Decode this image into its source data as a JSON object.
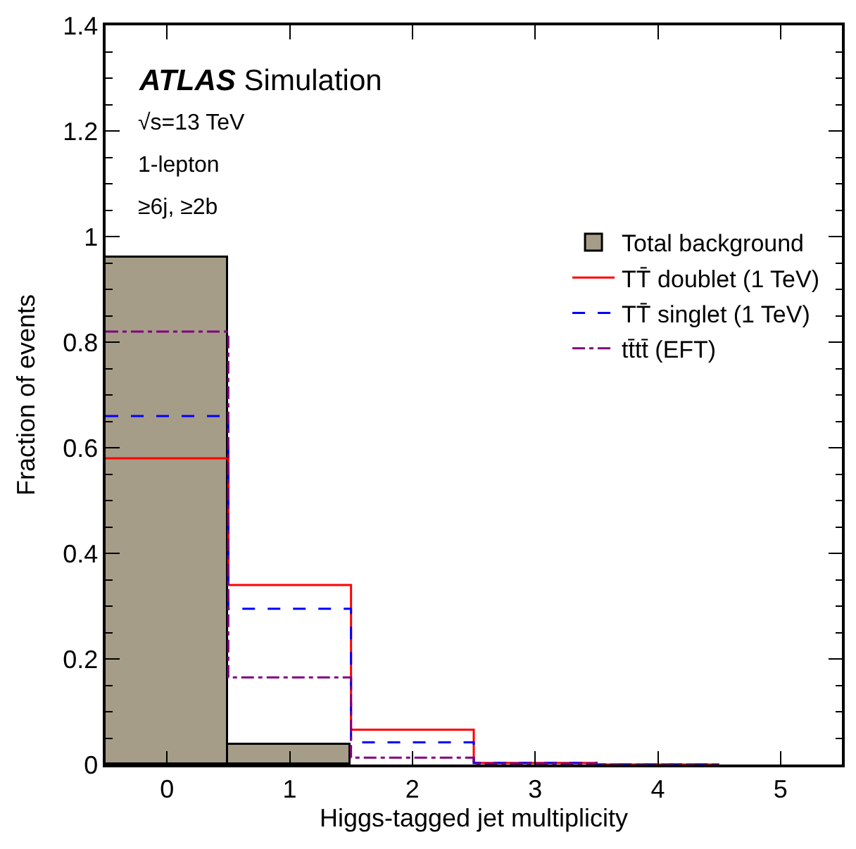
{
  "chart_data": {
    "type": "histogram",
    "xlabel": "Higgs-tagged jet multiplicity",
    "ylabel": "Fraction of events",
    "bins": [
      -0.5,
      0.5,
      1.5,
      2.5,
      3.5,
      4.5,
      5.5
    ],
    "series": [
      {
        "name": "Total background",
        "type": "histogram",
        "color": "#a59d87",
        "values": [
          0.96,
          0.038,
          0,
          0,
          0,
          0
        ]
      },
      {
        "name": "TT̄ doublet (1 TeV)",
        "type": "step",
        "color": "#ff0000",
        "line_style": "solid",
        "x": [
          -0.5,
          0.5,
          1.5,
          2.5,
          3.5,
          4.5
        ],
        "values": [
          0.58,
          0.34,
          0.066,
          0.003,
          0,
          0
        ]
      },
      {
        "name": "TT̄ singlet (1 TeV)",
        "type": "step",
        "color": "#0000ff",
        "line_style": "dashed",
        "x": [
          -0.5,
          0.5,
          1.5,
          2.5,
          3.5,
          4.5
        ],
        "values": [
          0.66,
          0.295,
          0.042,
          0.003,
          0,
          0
        ]
      },
      {
        "name": "tt̄tt̄ (EFT)",
        "type": "step",
        "color": "#800080",
        "line_style": "dashdot",
        "x": [
          -0.5,
          0.5,
          1.5,
          2.5,
          3.5,
          4.5
        ],
        "values": [
          0.82,
          0.165,
          0.013,
          0.002,
          0,
          0
        ]
      }
    ],
    "xlim": [
      -0.5,
      5.5
    ],
    "xticks": [
      0,
      1,
      2,
      3,
      4,
      5
    ],
    "ylim": [
      0,
      1.4
    ],
    "yticks": [
      0,
      0.2,
      0.4,
      0.6,
      0.8,
      1,
      1.2,
      1.4
    ],
    "annotations": [
      "ATLAS Simulation",
      "√s=13 TeV",
      "1-lepton",
      "≥6j, ≥2b"
    ],
    "legend": "top right"
  }
}
